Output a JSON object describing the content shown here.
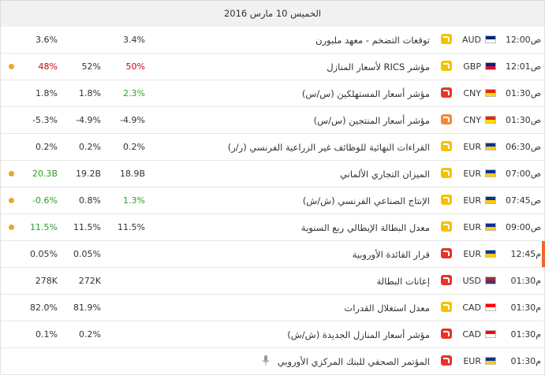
{
  "header": {
    "date": "الخميس 10 مارس 2016"
  },
  "colors": {
    "importance": [
      "#f2c200",
      "#f08a3c",
      "#e5342a"
    ],
    "dot": "#e8a82a",
    "now_bar": "#f0652a"
  },
  "events": [
    {
      "time": "12:00ص",
      "currency": "AUD",
      "flag": [
        "#00247d",
        "#ffffff"
      ],
      "importance": 1,
      "event": "توقعات التضخم - معهد ملبورن",
      "actual": "3.4%",
      "forecast": null,
      "previous": "3.6%"
    },
    {
      "time": "12:01ص",
      "currency": "GBP",
      "flag": [
        "#00247d",
        "#cf142b"
      ],
      "importance": 1,
      "event": "مؤشر RICS لأسعار المنازل",
      "actual": "50%",
      "actual_color": "#d0021b",
      "forecast": "52%",
      "previous": "48%",
      "previous_color": "#d0021b",
      "revised": true
    },
    {
      "time": "01:30ص",
      "currency": "CNY",
      "flag": [
        "#de2910",
        "#ffde00"
      ],
      "importance": 3,
      "event": "مؤشر أسعار المستهلكين (س/س)",
      "actual": "2.3%",
      "actual_color": "#2aa12a",
      "forecast": "1.8%",
      "previous": "1.8%"
    },
    {
      "time": "01:30ص",
      "currency": "CNY",
      "flag": [
        "#de2910",
        "#ffde00"
      ],
      "importance": 2,
      "event": "مؤشر أسعار المنتجين (س/س)",
      "actual": "-4.9%",
      "forecast": "-4.9%",
      "previous": "-5.3%"
    },
    {
      "time": "06:30ص",
      "currency": "EUR",
      "flag": [
        "#003399",
        "#ffcc00"
      ],
      "importance": 1,
      "event": "القراءات النهائية للوظائف غير الزراعية الفرنسي (ر/ر)",
      "actual": "0.2%",
      "forecast": "0.2%",
      "previous": "0.2%"
    },
    {
      "time": "07:00ص",
      "currency": "EUR",
      "flag": [
        "#003399",
        "#ffcc00"
      ],
      "importance": 1,
      "event": "الميزان التجاري الألماني",
      "actual": "18.9B",
      "forecast": "19.2B",
      "previous": "20.3B",
      "previous_color": "#2aa12a",
      "revised": true
    },
    {
      "time": "07:45ص",
      "currency": "EUR",
      "flag": [
        "#003399",
        "#ffcc00"
      ],
      "importance": 1,
      "event": "الإنتاج الصناعي الفرنسي (ش/ش)",
      "actual": "1.3%",
      "actual_color": "#2aa12a",
      "forecast": "0.8%",
      "previous": "-0.6%",
      "previous_color": "#2aa12a",
      "revised": true
    },
    {
      "time": "09:00ص",
      "currency": "EUR",
      "flag": [
        "#003399",
        "#ffcc00"
      ],
      "importance": 1,
      "event": "معدل البطالة الإيطالي ربع السنوية",
      "actual": "11.5%",
      "forecast": "11.5%",
      "previous": "11.5%",
      "previous_color": "#2aa12a",
      "revised": true
    },
    {
      "time": "12:45م",
      "currency": "EUR",
      "flag": [
        "#003399",
        "#ffcc00"
      ],
      "importance": 3,
      "event": "قرار الفائدة الأوروبية",
      "actual": null,
      "forecast": "0.05%",
      "previous": "0.05%",
      "now": true
    },
    {
      "time": "01:30م",
      "currency": "USD",
      "flag": [
        "#b22234",
        "#3c3b6e"
      ],
      "importance": 3,
      "event": "إعانات البطالة",
      "actual": null,
      "forecast": "272K",
      "previous": "278K"
    },
    {
      "time": "01:30م",
      "currency": "CAD",
      "flag": [
        "#ff0000",
        "#ffffff"
      ],
      "importance": 1,
      "event": "معدل استغلال القدرات",
      "actual": null,
      "forecast": "81.9%",
      "previous": "82.0%"
    },
    {
      "time": "01:30م",
      "currency": "CAD",
      "flag": [
        "#ff0000",
        "#ffffff"
      ],
      "importance": 3,
      "event": "مؤشر أسعار المنازل الجديدة (ش/ش)",
      "actual": null,
      "forecast": "0.2%",
      "previous": "0.1%"
    },
    {
      "time": "01:30م",
      "currency": "EUR",
      "flag": [
        "#003399",
        "#ffcc00"
      ],
      "importance": 3,
      "event": "المؤتمر الصحفي للبنك المركزي الأوروبي",
      "actual": null,
      "forecast": null,
      "previous": null,
      "speech": true
    }
  ]
}
